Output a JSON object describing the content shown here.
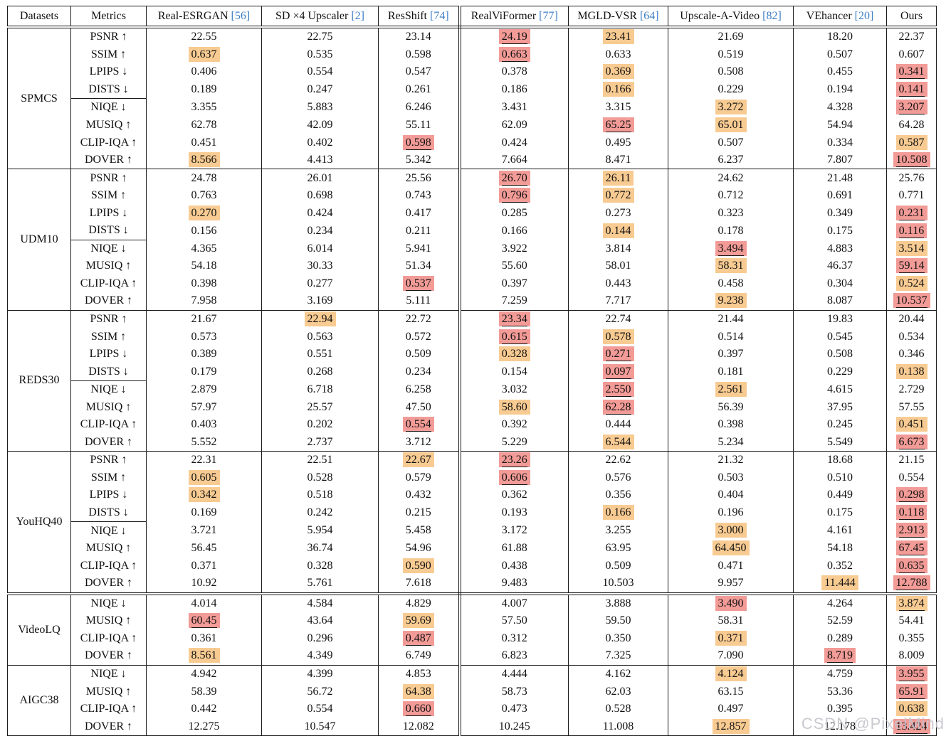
{
  "colors": {
    "best_bg": "#f29b97",
    "second_bg": "#f8cb92",
    "cite": "#3d7dc4",
    "watermark": "#c4c4cc"
  },
  "watermark": {
    "text": "CSDN @PixelMind"
  },
  "header": {
    "datasets": "Datasets",
    "metrics": "Metrics",
    "methods": [
      {
        "name": "Real-ESRGAN",
        "cite": "[56]"
      },
      {
        "name": "SD ×4 Upscaler",
        "cite": "[2]"
      },
      {
        "name": "ResShift",
        "cite": "[74]"
      },
      {
        "name": "RealViFormer",
        "cite": "[77]"
      },
      {
        "name": "MGLD-VSR",
        "cite": "[64]"
      },
      {
        "name": "Upscale-A-Video",
        "cite": "[82]"
      },
      {
        "name": "VEhancer",
        "cite": "[20]"
      },
      {
        "name": "Ours",
        "cite": ""
      }
    ]
  },
  "groups": [
    {
      "dataset": "SPMCS",
      "sep_after": "single",
      "cline_after": 3,
      "rows": [
        {
          "metric": "PSNR",
          "arrow": "↑",
          "cells": [
            "22.55",
            "22.75",
            "23.14",
            {
              "v": "24.19",
              "hl": "best",
              "u": true
            },
            {
              "v": "23.41",
              "hl": "second"
            },
            "21.69",
            "18.20",
            "22.37"
          ]
        },
        {
          "metric": "SSIM",
          "arrow": "↑",
          "cells": [
            {
              "v": "0.637",
              "hl": "second"
            },
            "0.535",
            "0.598",
            {
              "v": "0.663",
              "hl": "best",
              "u": true
            },
            "0.633",
            "0.519",
            "0.507",
            "0.607"
          ]
        },
        {
          "metric": "LPIPS",
          "arrow": "↓",
          "cells": [
            "0.406",
            "0.554",
            "0.547",
            "0.378",
            {
              "v": "0.369",
              "hl": "second"
            },
            "0.508",
            "0.455",
            {
              "v": "0.341",
              "hl": "best",
              "u": true
            }
          ]
        },
        {
          "metric": "DISTS",
          "arrow": "↓",
          "cells": [
            "0.189",
            "0.247",
            "0.261",
            "0.186",
            {
              "v": "0.166",
              "hl": "second"
            },
            "0.229",
            "0.194",
            {
              "v": "0.141",
              "hl": "best",
              "u": true
            }
          ]
        },
        {
          "metric": "NIQE",
          "arrow": "↓",
          "cells": [
            "3.355",
            "5.883",
            "6.246",
            "3.431",
            "3.315",
            {
              "v": "3.272",
              "hl": "second"
            },
            "4.328",
            {
              "v": "3.207",
              "hl": "best",
              "u": true
            }
          ]
        },
        {
          "metric": "MUSIQ",
          "arrow": "↑",
          "cells": [
            "62.78",
            "42.09",
            "55.11",
            "62.09",
            {
              "v": "65.25",
              "hl": "best",
              "u": true
            },
            {
              "v": "65.01",
              "hl": "second"
            },
            "54.94",
            "64.28"
          ]
        },
        {
          "metric": "CLIP-IQA",
          "arrow": "↑",
          "cells": [
            "0.451",
            "0.402",
            {
              "v": "0.598",
              "hl": "best",
              "u": true
            },
            "0.424",
            "0.495",
            "0.507",
            "0.334",
            {
              "v": "0.587",
              "hl": "second"
            }
          ]
        },
        {
          "metric": "DOVER",
          "arrow": "↑",
          "cells": [
            {
              "v": "8.566",
              "hl": "second"
            },
            "4.413",
            "5.342",
            "7.664",
            "8.471",
            "6.237",
            "7.807",
            {
              "v": "10.508",
              "hl": "best",
              "u": true
            }
          ]
        }
      ]
    },
    {
      "dataset": "UDM10",
      "sep_after": "single",
      "cline_after": 3,
      "rows": [
        {
          "metric": "PSNR",
          "arrow": "↑",
          "cells": [
            "24.78",
            "26.01",
            "25.56",
            {
              "v": "26.70",
              "hl": "best",
              "u": true
            },
            {
              "v": "26.11",
              "hl": "second"
            },
            "24.62",
            "21.48",
            "25.76"
          ]
        },
        {
          "metric": "SSIM",
          "arrow": "↑",
          "cells": [
            "0.763",
            "0.698",
            "0.743",
            {
              "v": "0.796",
              "hl": "best",
              "u": true
            },
            {
              "v": "0.772",
              "hl": "second"
            },
            "0.712",
            "0.691",
            "0.771"
          ]
        },
        {
          "metric": "LPIPS",
          "arrow": "↓",
          "cells": [
            {
              "v": "0.270",
              "hl": "second"
            },
            "0.424",
            "0.417",
            "0.285",
            "0.273",
            "0.323",
            "0.349",
            {
              "v": "0.231",
              "hl": "best",
              "u": true
            }
          ]
        },
        {
          "metric": "DISTS",
          "arrow": "↓",
          "cells": [
            "0.156",
            "0.234",
            "0.211",
            "0.166",
            {
              "v": "0.144",
              "hl": "second"
            },
            "0.178",
            "0.175",
            {
              "v": "0.116",
              "hl": "best",
              "u": true
            }
          ]
        },
        {
          "metric": "NIQE",
          "arrow": "↓",
          "cells": [
            "4.365",
            "6.014",
            "5.941",
            "3.922",
            "3.814",
            {
              "v": "3.494",
              "hl": "best",
              "u": true
            },
            "4.883",
            {
              "v": "3.514",
              "hl": "second"
            }
          ]
        },
        {
          "metric": "MUSIQ",
          "arrow": "↑",
          "cells": [
            "54.18",
            "30.33",
            "51.34",
            "55.60",
            "58.01",
            {
              "v": "58.31",
              "hl": "second"
            },
            "46.37",
            {
              "v": "59.14",
              "hl": "best",
              "u": true
            }
          ]
        },
        {
          "metric": "CLIP-IQA",
          "arrow": "↑",
          "cells": [
            "0.398",
            "0.277",
            {
              "v": "0.537",
              "hl": "best",
              "u": true
            },
            "0.397",
            "0.443",
            "0.458",
            "0.304",
            {
              "v": "0.524",
              "hl": "second"
            }
          ]
        },
        {
          "metric": "DOVER",
          "arrow": "↑",
          "cells": [
            "7.958",
            "3.169",
            "5.111",
            "7.259",
            "7.717",
            {
              "v": "9.238",
              "hl": "second"
            },
            "8.087",
            {
              "v": "10.537",
              "hl": "best",
              "u": true
            }
          ]
        }
      ]
    },
    {
      "dataset": "REDS30",
      "sep_after": "single",
      "cline_after": 3,
      "rows": [
        {
          "metric": "PSNR",
          "arrow": "↑",
          "cells": [
            "21.67",
            {
              "v": "22.94",
              "hl": "second"
            },
            "22.72",
            {
              "v": "23.34",
              "hl": "best",
              "u": true
            },
            "22.74",
            "21.44",
            "19.83",
            "20.44"
          ]
        },
        {
          "metric": "SSIM",
          "arrow": "↑",
          "cells": [
            "0.573",
            "0.563",
            "0.572",
            {
              "v": "0.615",
              "hl": "best",
              "u": true
            },
            {
              "v": "0.578",
              "hl": "second"
            },
            "0.514",
            "0.545",
            "0.534"
          ]
        },
        {
          "metric": "LPIPS",
          "arrow": "↓",
          "cells": [
            "0.389",
            "0.551",
            "0.509",
            {
              "v": "0.328",
              "hl": "second"
            },
            {
              "v": "0.271",
              "hl": "best",
              "u": true
            },
            "0.397",
            "0.508",
            "0.346"
          ]
        },
        {
          "metric": "DISTS",
          "arrow": "↓",
          "cells": [
            "0.179",
            "0.268",
            "0.234",
            "0.154",
            {
              "v": "0.097",
              "hl": "best",
              "u": true
            },
            "0.181",
            "0.229",
            {
              "v": "0.138",
              "hl": "second"
            }
          ]
        },
        {
          "metric": "NIQE",
          "arrow": "↓",
          "cells": [
            "2.879",
            "6.718",
            "6.258",
            "3.032",
            {
              "v": "2.550",
              "hl": "best",
              "u": true
            },
            {
              "v": "2.561",
              "hl": "second"
            },
            "4.615",
            "2.729"
          ]
        },
        {
          "metric": "MUSIQ",
          "arrow": "↑",
          "cells": [
            "57.97",
            "25.57",
            "47.50",
            {
              "v": "58.60",
              "hl": "second"
            },
            {
              "v": "62.28",
              "hl": "best",
              "u": true
            },
            "56.39",
            "37.95",
            "57.55"
          ]
        },
        {
          "metric": "CLIP-IQA",
          "arrow": "↑",
          "cells": [
            "0.403",
            "0.202",
            {
              "v": "0.554",
              "hl": "best",
              "u": true
            },
            "0.392",
            "0.444",
            "0.398",
            "0.245",
            {
              "v": "0.451",
              "hl": "second"
            }
          ]
        },
        {
          "metric": "DOVER",
          "arrow": "↑",
          "cells": [
            "5.552",
            "2.737",
            "3.712",
            "5.229",
            {
              "v": "6.544",
              "hl": "second"
            },
            "5.234",
            "5.549",
            {
              "v": "6.673",
              "hl": "best",
              "u": true
            }
          ]
        }
      ]
    },
    {
      "dataset": "YouHQ40",
      "sep_after": "double",
      "cline_after": 3,
      "rows": [
        {
          "metric": "PSNR",
          "arrow": "↑",
          "cells": [
            "22.31",
            "22.51",
            {
              "v": "22.67",
              "hl": "second"
            },
            {
              "v": "23.26",
              "hl": "best",
              "u": true
            },
            "22.62",
            "21.32",
            "18.68",
            "21.15"
          ]
        },
        {
          "metric": "SSIM",
          "arrow": "↑",
          "cells": [
            {
              "v": "0.605",
              "hl": "second"
            },
            "0.528",
            "0.579",
            {
              "v": "0.606",
              "hl": "best",
              "u": true
            },
            "0.576",
            "0.503",
            "0.510",
            "0.554"
          ]
        },
        {
          "metric": "LPIPS",
          "arrow": "↓",
          "cells": [
            {
              "v": "0.342",
              "hl": "second"
            },
            "0.518",
            "0.432",
            "0.362",
            "0.356",
            "0.404",
            "0.449",
            {
              "v": "0.298",
              "hl": "best",
              "u": true
            }
          ]
        },
        {
          "metric": "DISTS",
          "arrow": "↓",
          "cells": [
            "0.169",
            "0.242",
            "0.215",
            "0.193",
            {
              "v": "0.166",
              "hl": "second"
            },
            "0.196",
            "0.175",
            {
              "v": "0.118",
              "hl": "best",
              "u": true
            }
          ]
        },
        {
          "metric": "NIQE",
          "arrow": "↓",
          "cells": [
            "3.721",
            "5.954",
            "5.458",
            "3.172",
            "3.255",
            {
              "v": "3.000",
              "hl": "second"
            },
            "4.161",
            {
              "v": "2.913",
              "hl": "best",
              "u": true
            }
          ]
        },
        {
          "metric": "MUSIQ",
          "arrow": "↑",
          "cells": [
            "56.45",
            "36.74",
            "54.96",
            "61.88",
            "63.95",
            {
              "v": "64.450",
              "hl": "second"
            },
            "54.18",
            {
              "v": "67.45",
              "hl": "best",
              "u": true
            }
          ]
        },
        {
          "metric": "CLIP-IQA",
          "arrow": "↑",
          "cells": [
            "0.371",
            "0.328",
            {
              "v": "0.590",
              "hl": "second"
            },
            "0.438",
            "0.509",
            "0.471",
            "0.352",
            {
              "v": "0.635",
              "hl": "best",
              "u": true
            }
          ]
        },
        {
          "metric": "DOVER",
          "arrow": "↑",
          "cells": [
            "10.92",
            "5.761",
            "7.618",
            "9.483",
            "10.503",
            "9.957",
            {
              "v": "11.444",
              "hl": "second"
            },
            {
              "v": "12.788",
              "hl": "best",
              "u": true
            }
          ]
        }
      ]
    },
    {
      "dataset": "VideoLQ",
      "sep_after": "single",
      "cline_after": null,
      "rows": [
        {
          "metric": "NIQE",
          "arrow": "↓",
          "cells": [
            "4.014",
            "4.584",
            "4.829",
            "4.007",
            "3.888",
            {
              "v": "3.490",
              "hl": "best"
            },
            "4.264",
            {
              "v": "3.874",
              "hl": "second",
              "u": true
            }
          ]
        },
        {
          "metric": "MUSIQ",
          "arrow": "↑",
          "cells": [
            {
              "v": "60.45",
              "hl": "best",
              "u": true
            },
            "43.64",
            {
              "v": "59.69",
              "hl": "second"
            },
            "57.50",
            "59.50",
            "58.31",
            "52.59",
            "54.41"
          ]
        },
        {
          "metric": "CLIP-IQA",
          "arrow": "↑",
          "cells": [
            "0.361",
            "0.296",
            {
              "v": "0.487",
              "hl": "best",
              "u": true
            },
            "0.312",
            "0.350",
            {
              "v": "0.371",
              "hl": "second"
            },
            "0.289",
            "0.355"
          ]
        },
        {
          "metric": "DOVER",
          "arrow": "↑",
          "cells": [
            {
              "v": "8.561",
              "hl": "second"
            },
            "4.349",
            "6.749",
            "6.823",
            "7.325",
            "7.090",
            {
              "v": "8.719",
              "hl": "best",
              "u": true
            },
            "8.009"
          ]
        }
      ]
    },
    {
      "dataset": "AIGC38",
      "sep_after": null,
      "cline_after": null,
      "rows": [
        {
          "metric": "NIQE",
          "arrow": "↓",
          "cells": [
            "4.942",
            "4.399",
            "4.853",
            "4.444",
            "4.162",
            {
              "v": "4.124",
              "hl": "second"
            },
            "4.759",
            {
              "v": "3.955",
              "hl": "best",
              "u": true
            }
          ]
        },
        {
          "metric": "MUSIQ",
          "arrow": "↑",
          "cells": [
            "58.39",
            "56.72",
            {
              "v": "64.38",
              "hl": "second"
            },
            "58.73",
            "62.03",
            "63.15",
            "53.36",
            {
              "v": "65.91",
              "hl": "best",
              "u": true
            }
          ]
        },
        {
          "metric": "CLIP-IQA",
          "arrow": "↑",
          "cells": [
            "0.442",
            "0.554",
            {
              "v": "0.660",
              "hl": "best",
              "u": true
            },
            "0.473",
            "0.528",
            "0.497",
            "0.395",
            {
              "v": "0.638",
              "hl": "second"
            }
          ]
        },
        {
          "metric": "DOVER",
          "arrow": "↑",
          "cells": [
            "12.275",
            "10.547",
            "12.082",
            "10.245",
            "11.008",
            {
              "v": "12.857",
              "hl": "second"
            },
            "12.178",
            {
              "v": "13.424",
              "hl": "best",
              "u": true
            }
          ]
        }
      ]
    }
  ]
}
